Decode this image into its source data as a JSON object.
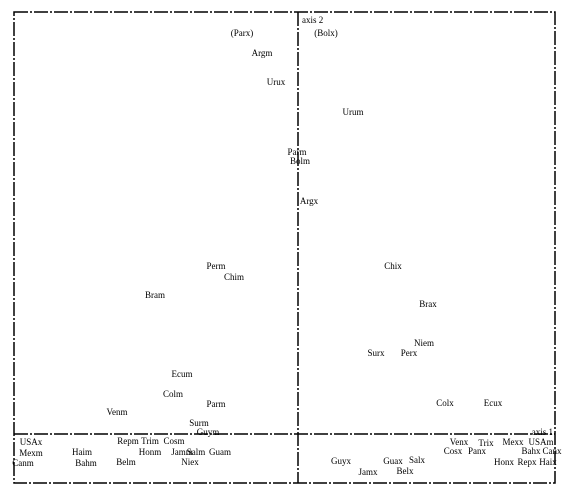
{
  "chart_data": {
    "type": "scatter",
    "x_label": "axis 1",
    "y_label": "axis 2",
    "labels": [
      "(Parx)",
      "(Bolx)",
      "Argm",
      "Urux",
      "Urum",
      "Parm",
      "Bolm",
      "Argx",
      "Perm",
      "Chim",
      "Bram",
      "Chix",
      "Brax",
      "Niem",
      "Surx",
      "Perx",
      "Ecum",
      "Colm",
      "Parm",
      "Venm",
      "Colx",
      "Ecux",
      "Surm",
      "Guym",
      "USAx",
      "Mexm",
      "Canm",
      "Haim",
      "Bahm",
      "Repm",
      "Trim",
      "Cosm",
      "Honm",
      "Jamm",
      "Salm",
      "Guam",
      "Belm",
      "Niex",
      "Guyx",
      "Jamx",
      "Guax",
      "Salx",
      "Belx",
      "Venx",
      "Cosx",
      "Panx",
      "Trix",
      "Mexx",
      "USAm",
      "Bahx",
      "Canx",
      "Honx",
      "Repx",
      "Haix"
    ],
    "x": [
      -0.56,
      0.28,
      -0.36,
      -0.22,
      0.55,
      -0.01,
      0.02,
      0.11,
      -0.82,
      -0.64,
      -1.43,
      0.95,
      1.3,
      1.26,
      0.78,
      1.11,
      -1.16,
      -1.25,
      -0.82,
      -1.81,
      1.47,
      1.95,
      -0.99,
      -0.9,
      -2.67,
      -2.67,
      -2.75,
      -2.16,
      -2.12,
      -1.7,
      -1.48,
      -1.24,
      -1.48,
      -1.16,
      -1.02,
      -0.78,
      -1.72,
      -1.08,
      0.43,
      0.7,
      0.95,
      1.19,
      1.07,
      1.61,
      1.55,
      1.79,
      1.88,
      2.15,
      2.43,
      2.33,
      2.54,
      2.06,
      2.29,
      2.5
    ],
    "values": [
      4.0,
      4.0,
      3.8,
      3.51,
      3.21,
      2.81,
      2.72,
      2.32,
      1.67,
      1.56,
      1.38,
      1.67,
      1.29,
      0.9,
      0.8,
      0.8,
      0.59,
      0.39,
      0.29,
      0.21,
      0.3,
      0.3,
      0.1,
      0.01,
      -0.09,
      -0.2,
      -0.3,
      -0.19,
      -0.3,
      -0.08,
      -0.08,
      -0.08,
      -0.19,
      -0.19,
      -0.19,
      -0.19,
      -0.29,
      -0.29,
      -0.28,
      -0.39,
      -0.28,
      -0.27,
      -0.38,
      -0.09,
      -0.18,
      -0.18,
      -0.1,
      -0.09,
      -0.09,
      -0.18,
      -0.18,
      -0.29,
      -0.29,
      -0.29
    ],
    "xlim": [
      -2.84,
      2.57
    ],
    "ylim": [
      -0.49,
      4.22
    ],
    "color": "#000000"
  }
}
